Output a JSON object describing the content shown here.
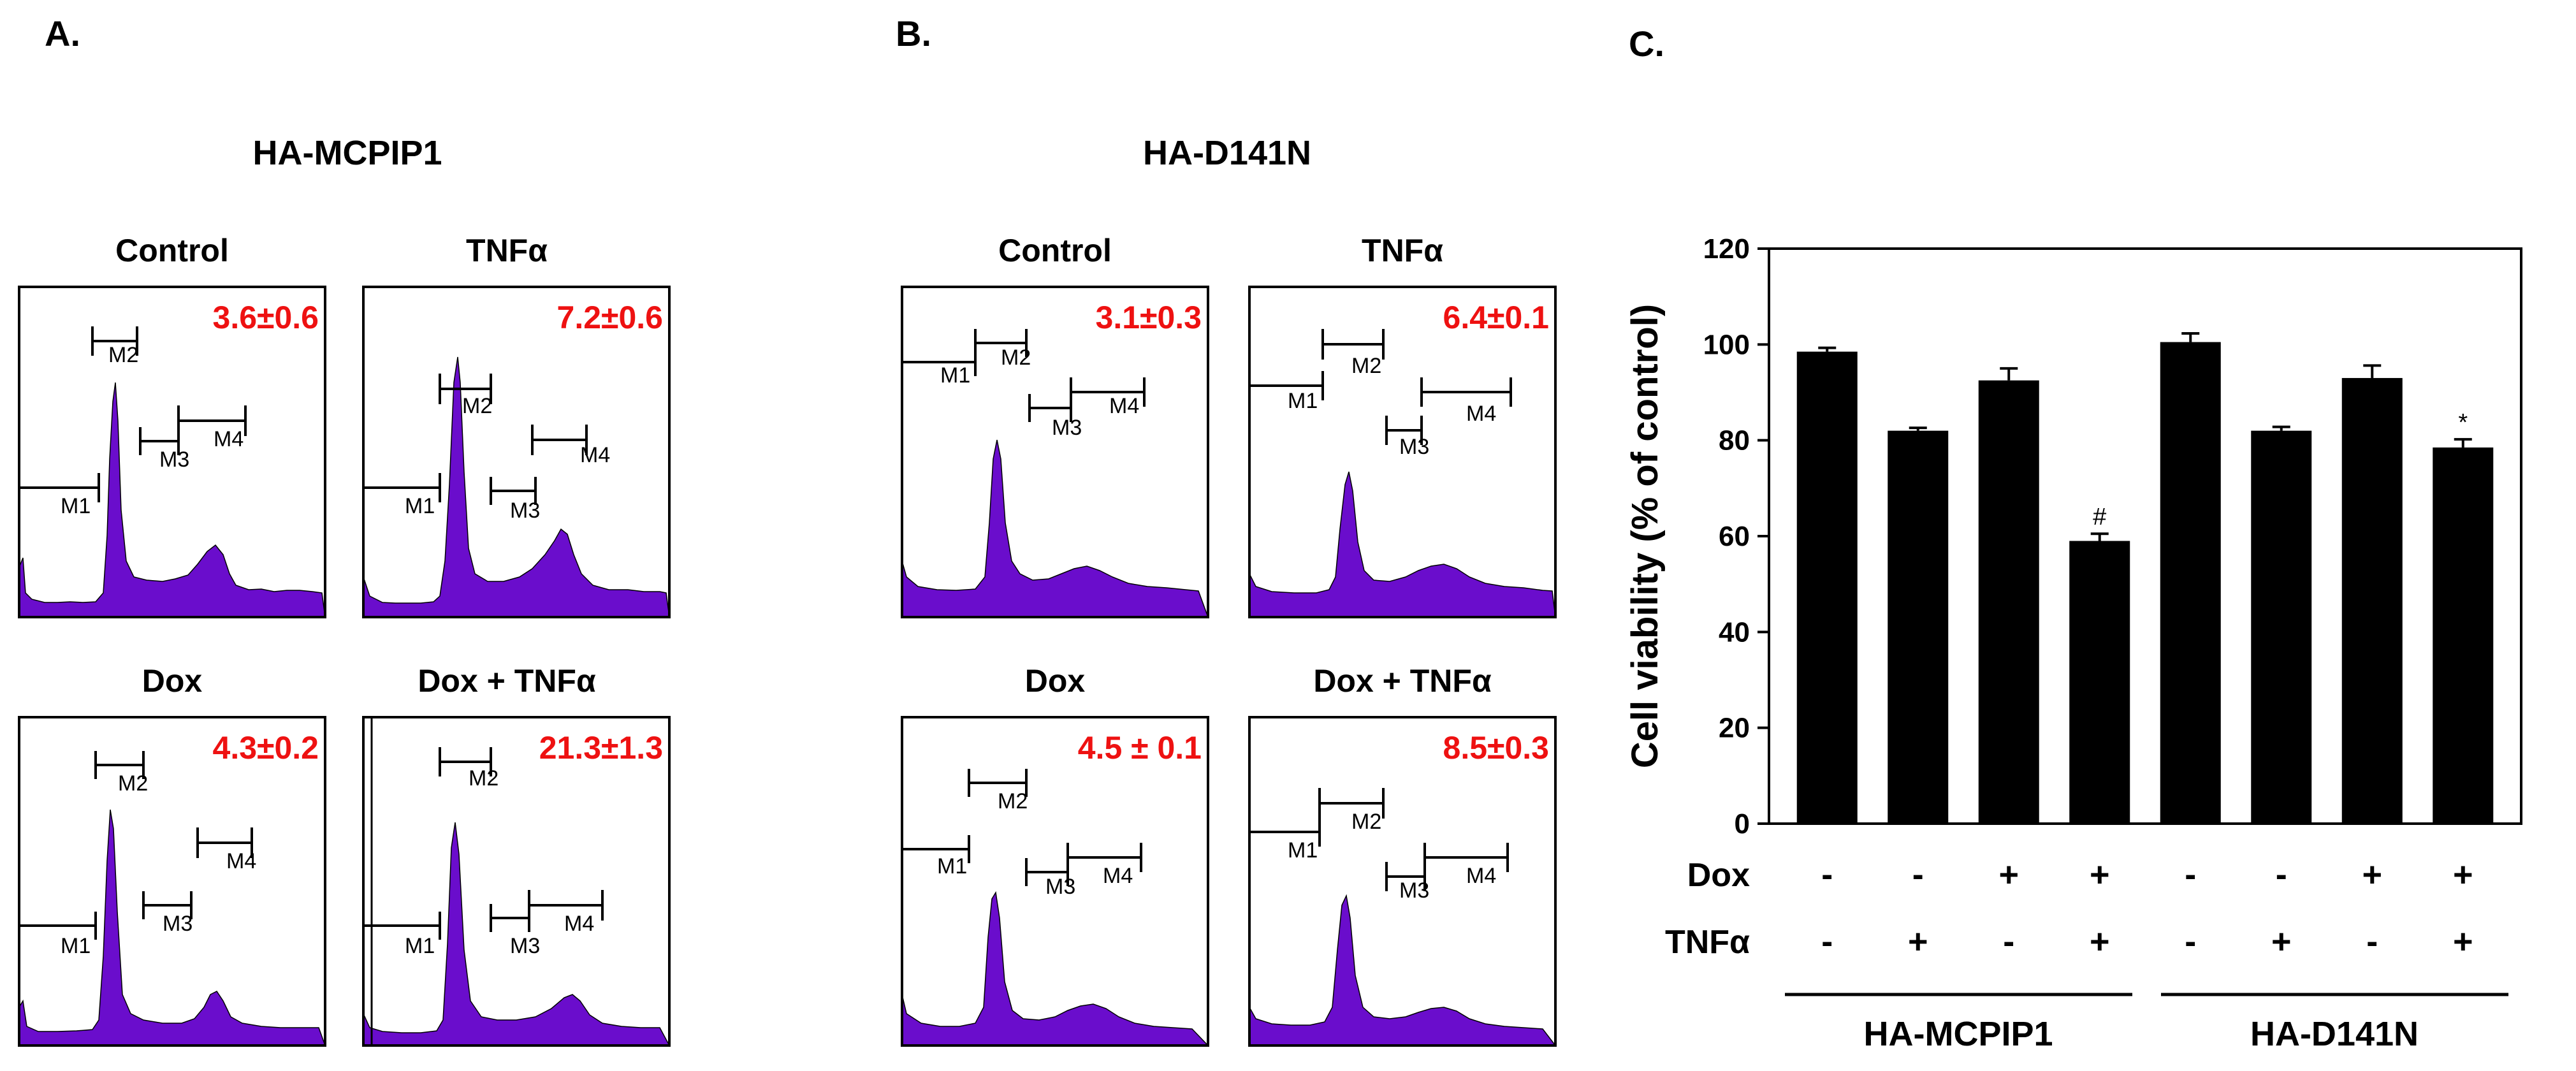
{
  "panel_labels": {
    "a": "A.",
    "b": "B.",
    "c": "C."
  },
  "panelA": {
    "title": "HA-MCPIP1",
    "histograms": [
      {
        "title": "Control",
        "value": "3.6±0.6",
        "markers": [
          "M1",
          "M2",
          "M3",
          "M4"
        ]
      },
      {
        "title": "TNFα",
        "value": "7.2±0.6",
        "markers": [
          "M1",
          "M2",
          "M3",
          "M4"
        ]
      },
      {
        "title": "Dox",
        "value": "4.3±0.2",
        "markers": [
          "M1",
          "M2",
          "M3",
          "M4"
        ]
      },
      {
        "title": "Dox + TNFα",
        "value": "21.3±1.3",
        "markers": [
          "M1",
          "M2",
          "M3",
          "M4"
        ]
      }
    ]
  },
  "panelB": {
    "title": "HA-D141N",
    "histograms": [
      {
        "title": "Control",
        "value": "3.1±0.3",
        "markers": [
          "M1",
          "M2",
          "M3",
          "M4"
        ]
      },
      {
        "title": "TNFα",
        "value": "6.4±0.1",
        "markers": [
          "M1",
          "M2",
          "M3",
          "M4"
        ]
      },
      {
        "title": "Dox",
        "value": "4.5 ± 0.1",
        "markers": [
          "M1",
          "M2",
          "M3",
          "M4"
        ]
      },
      {
        "title": "Dox + TNFα",
        "value": "8.5±0.3",
        "markers": [
          "M1",
          "M2",
          "M3",
          "M4"
        ]
      }
    ]
  },
  "colors": {
    "histogram_fill": "#6a0dcc",
    "stat_text": "#ee1111",
    "bar": "#000000"
  },
  "chart_data": {
    "type": "bar",
    "ylabel": "Cell viability (% of control)",
    "ylim": [
      0,
      120
    ],
    "yticks": [
      0,
      20,
      40,
      60,
      80,
      100,
      120
    ],
    "values": [
      98.5,
      82,
      92.5,
      59,
      100.5,
      82,
      93,
      78.5
    ],
    "errors": [
      0.8,
      0.6,
      2.5,
      1.5,
      1.8,
      0.8,
      2.6,
      1.7
    ],
    "annotations": [
      "",
      "",
      "",
      "#",
      "",
      "",
      "",
      "*"
    ],
    "rows": [
      {
        "label": "Dox",
        "signs": [
          "-",
          "-",
          "+",
          "+",
          "-",
          "-",
          "+",
          "+"
        ]
      },
      {
        "label": "TNFα",
        "signs": [
          "-",
          "+",
          "-",
          "+",
          "-",
          "+",
          "-",
          "+"
        ]
      }
    ],
    "groups": [
      "HA-MCPIP1",
      "HA-D141N"
    ]
  }
}
